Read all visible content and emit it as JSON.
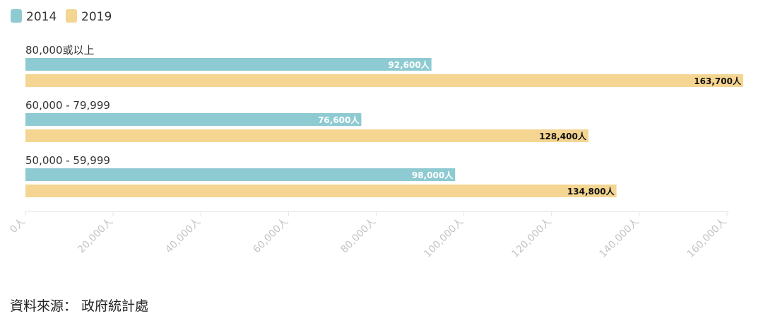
{
  "chart_data": {
    "type": "bar",
    "orientation": "horizontal",
    "categories": [
      "80,000或以上",
      "60,000 - 79,999",
      "50,000 - 59,999"
    ],
    "series": [
      {
        "name": "2014",
        "values": [
          92600,
          76600,
          98000
        ],
        "labels": [
          "92,600人",
          "76,600人",
          "98,000人"
        ],
        "color": "#8ecad1"
      },
      {
        "name": "2019",
        "values": [
          163700,
          128400,
          134800
        ],
        "labels": [
          "163,700人",
          "128,400人",
          "134,800人"
        ],
        "color": "#f4d591"
      }
    ],
    "xlim": [
      0,
      160000
    ],
    "x_ticks": [
      {
        "value": 0,
        "label": "0人"
      },
      {
        "value": 20000,
        "label": "20,000人"
      },
      {
        "value": 40000,
        "label": "40,000人"
      },
      {
        "value": 60000,
        "label": "60,000人"
      },
      {
        "value": 80000,
        "label": "80,000人"
      },
      {
        "value": 100000,
        "label": "100,000人"
      },
      {
        "value": 120000,
        "label": "120,000人"
      },
      {
        "value": 140000,
        "label": "140,000人"
      },
      {
        "value": 160000,
        "label": "160,000人"
      }
    ],
    "legend": "top-left",
    "grid": false
  },
  "source": "資料來源： 政府統計處"
}
